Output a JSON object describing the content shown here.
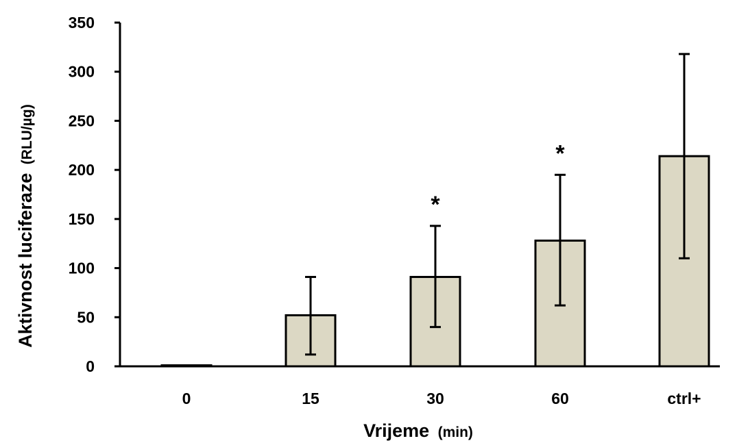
{
  "chart_data": {
    "type": "bar",
    "categories": [
      "0",
      "15",
      "30",
      "60",
      "ctrl+"
    ],
    "values": [
      1,
      52,
      91,
      128,
      214
    ],
    "error_low": [
      1,
      12,
      40,
      62,
      110
    ],
    "error_high": [
      1,
      91,
      143,
      195,
      318
    ],
    "significance": [
      "",
      "",
      "*",
      "*",
      ""
    ],
    "ylim": [
      0,
      350
    ],
    "yticks": [
      0,
      50,
      100,
      150,
      200,
      250,
      300,
      350
    ],
    "ylabel_main": "Aktivnost luciferaze",
    "ylabel_unit": "(RLU/µg)",
    "xlabel_main": "Vrijeme",
    "xlabel_unit": "(min)",
    "grid": false,
    "legend": "none",
    "bar_color": "#dcd8c4",
    "stroke_color": "#000000"
  }
}
